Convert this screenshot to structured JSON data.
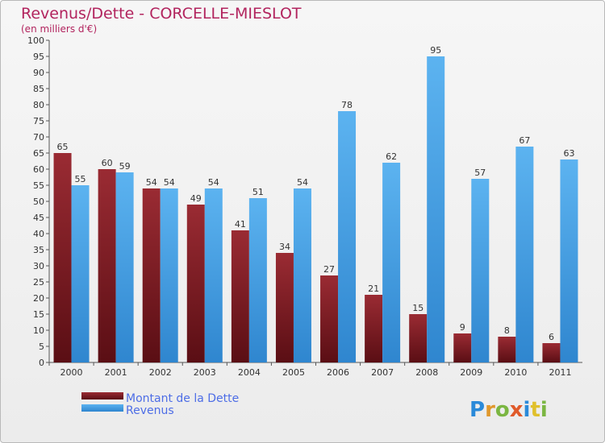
{
  "chart_data": {
    "type": "bar",
    "title": "Revenus/Dette - CORCELLE-MIESLOT",
    "subtitle": "(en milliers d'€)",
    "categories": [
      "2000",
      "2001",
      "2002",
      "2003",
      "2004",
      "2005",
      "2006",
      "2007",
      "2008",
      "2009",
      "2010",
      "2011"
    ],
    "series": [
      {
        "name": "Montant de la Dette",
        "color": "#7a1a22",
        "values": [
          65,
          60,
          54,
          49,
          41,
          34,
          27,
          21,
          15,
          9,
          8,
          6
        ]
      },
      {
        "name": "Revenus",
        "color": "#4aa3e6",
        "values": [
          55,
          59,
          54,
          54,
          51,
          54,
          78,
          62,
          95,
          57,
          67,
          63
        ]
      }
    ],
    "ylim": [
      0,
      100
    ],
    "ytick_step": 5,
    "grid": false,
    "legend_position": "bottom-left"
  },
  "branding": {
    "logo_text": "Proxiti"
  }
}
